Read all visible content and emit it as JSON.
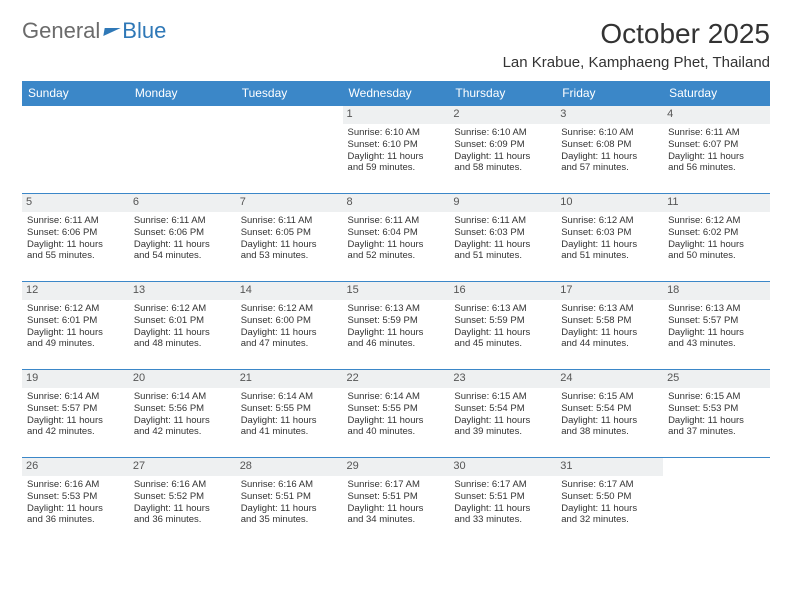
{
  "brand": {
    "part1": "General",
    "part2": "Blue"
  },
  "title": "October 2025",
  "location": "Lan Krabue, Kamphaeng Phet, Thailand",
  "colors": {
    "header_bg": "#3b87c8",
    "header_text": "#ffffff",
    "row_border": "#3b87c8",
    "daynum_bg": "#eef0f1",
    "daynum_text": "#555555",
    "body_text": "#333333",
    "brand_gray": "#6b6b6b",
    "brand_blue": "#2f78b7",
    "page_bg": "#ffffff"
  },
  "daysOfWeek": [
    "Sunday",
    "Monday",
    "Tuesday",
    "Wednesday",
    "Thursday",
    "Friday",
    "Saturday"
  ],
  "weeks": [
    [
      null,
      null,
      null,
      {
        "n": "1",
        "sr": "Sunrise: 6:10 AM",
        "ss": "Sunset: 6:10 PM",
        "d1": "Daylight: 11 hours",
        "d2": "and 59 minutes."
      },
      {
        "n": "2",
        "sr": "Sunrise: 6:10 AM",
        "ss": "Sunset: 6:09 PM",
        "d1": "Daylight: 11 hours",
        "d2": "and 58 minutes."
      },
      {
        "n": "3",
        "sr": "Sunrise: 6:10 AM",
        "ss": "Sunset: 6:08 PM",
        "d1": "Daylight: 11 hours",
        "d2": "and 57 minutes."
      },
      {
        "n": "4",
        "sr": "Sunrise: 6:11 AM",
        "ss": "Sunset: 6:07 PM",
        "d1": "Daylight: 11 hours",
        "d2": "and 56 minutes."
      }
    ],
    [
      {
        "n": "5",
        "sr": "Sunrise: 6:11 AM",
        "ss": "Sunset: 6:06 PM",
        "d1": "Daylight: 11 hours",
        "d2": "and 55 minutes."
      },
      {
        "n": "6",
        "sr": "Sunrise: 6:11 AM",
        "ss": "Sunset: 6:06 PM",
        "d1": "Daylight: 11 hours",
        "d2": "and 54 minutes."
      },
      {
        "n": "7",
        "sr": "Sunrise: 6:11 AM",
        "ss": "Sunset: 6:05 PM",
        "d1": "Daylight: 11 hours",
        "d2": "and 53 minutes."
      },
      {
        "n": "8",
        "sr": "Sunrise: 6:11 AM",
        "ss": "Sunset: 6:04 PM",
        "d1": "Daylight: 11 hours",
        "d2": "and 52 minutes."
      },
      {
        "n": "9",
        "sr": "Sunrise: 6:11 AM",
        "ss": "Sunset: 6:03 PM",
        "d1": "Daylight: 11 hours",
        "d2": "and 51 minutes."
      },
      {
        "n": "10",
        "sr": "Sunrise: 6:12 AM",
        "ss": "Sunset: 6:03 PM",
        "d1": "Daylight: 11 hours",
        "d2": "and 51 minutes."
      },
      {
        "n": "11",
        "sr": "Sunrise: 6:12 AM",
        "ss": "Sunset: 6:02 PM",
        "d1": "Daylight: 11 hours",
        "d2": "and 50 minutes."
      }
    ],
    [
      {
        "n": "12",
        "sr": "Sunrise: 6:12 AM",
        "ss": "Sunset: 6:01 PM",
        "d1": "Daylight: 11 hours",
        "d2": "and 49 minutes."
      },
      {
        "n": "13",
        "sr": "Sunrise: 6:12 AM",
        "ss": "Sunset: 6:01 PM",
        "d1": "Daylight: 11 hours",
        "d2": "and 48 minutes."
      },
      {
        "n": "14",
        "sr": "Sunrise: 6:12 AM",
        "ss": "Sunset: 6:00 PM",
        "d1": "Daylight: 11 hours",
        "d2": "and 47 minutes."
      },
      {
        "n": "15",
        "sr": "Sunrise: 6:13 AM",
        "ss": "Sunset: 5:59 PM",
        "d1": "Daylight: 11 hours",
        "d2": "and 46 minutes."
      },
      {
        "n": "16",
        "sr": "Sunrise: 6:13 AM",
        "ss": "Sunset: 5:59 PM",
        "d1": "Daylight: 11 hours",
        "d2": "and 45 minutes."
      },
      {
        "n": "17",
        "sr": "Sunrise: 6:13 AM",
        "ss": "Sunset: 5:58 PM",
        "d1": "Daylight: 11 hours",
        "d2": "and 44 minutes."
      },
      {
        "n": "18",
        "sr": "Sunrise: 6:13 AM",
        "ss": "Sunset: 5:57 PM",
        "d1": "Daylight: 11 hours",
        "d2": "and 43 minutes."
      }
    ],
    [
      {
        "n": "19",
        "sr": "Sunrise: 6:14 AM",
        "ss": "Sunset: 5:57 PM",
        "d1": "Daylight: 11 hours",
        "d2": "and 42 minutes."
      },
      {
        "n": "20",
        "sr": "Sunrise: 6:14 AM",
        "ss": "Sunset: 5:56 PM",
        "d1": "Daylight: 11 hours",
        "d2": "and 42 minutes."
      },
      {
        "n": "21",
        "sr": "Sunrise: 6:14 AM",
        "ss": "Sunset: 5:55 PM",
        "d1": "Daylight: 11 hours",
        "d2": "and 41 minutes."
      },
      {
        "n": "22",
        "sr": "Sunrise: 6:14 AM",
        "ss": "Sunset: 5:55 PM",
        "d1": "Daylight: 11 hours",
        "d2": "and 40 minutes."
      },
      {
        "n": "23",
        "sr": "Sunrise: 6:15 AM",
        "ss": "Sunset: 5:54 PM",
        "d1": "Daylight: 11 hours",
        "d2": "and 39 minutes."
      },
      {
        "n": "24",
        "sr": "Sunrise: 6:15 AM",
        "ss": "Sunset: 5:54 PM",
        "d1": "Daylight: 11 hours",
        "d2": "and 38 minutes."
      },
      {
        "n": "25",
        "sr": "Sunrise: 6:15 AM",
        "ss": "Sunset: 5:53 PM",
        "d1": "Daylight: 11 hours",
        "d2": "and 37 minutes."
      }
    ],
    [
      {
        "n": "26",
        "sr": "Sunrise: 6:16 AM",
        "ss": "Sunset: 5:53 PM",
        "d1": "Daylight: 11 hours",
        "d2": "and 36 minutes."
      },
      {
        "n": "27",
        "sr": "Sunrise: 6:16 AM",
        "ss": "Sunset: 5:52 PM",
        "d1": "Daylight: 11 hours",
        "d2": "and 36 minutes."
      },
      {
        "n": "28",
        "sr": "Sunrise: 6:16 AM",
        "ss": "Sunset: 5:51 PM",
        "d1": "Daylight: 11 hours",
        "d2": "and 35 minutes."
      },
      {
        "n": "29",
        "sr": "Sunrise: 6:17 AM",
        "ss": "Sunset: 5:51 PM",
        "d1": "Daylight: 11 hours",
        "d2": "and 34 minutes."
      },
      {
        "n": "30",
        "sr": "Sunrise: 6:17 AM",
        "ss": "Sunset: 5:51 PM",
        "d1": "Daylight: 11 hours",
        "d2": "and 33 minutes."
      },
      {
        "n": "31",
        "sr": "Sunrise: 6:17 AM",
        "ss": "Sunset: 5:50 PM",
        "d1": "Daylight: 11 hours",
        "d2": "and 32 minutes."
      },
      null
    ]
  ]
}
